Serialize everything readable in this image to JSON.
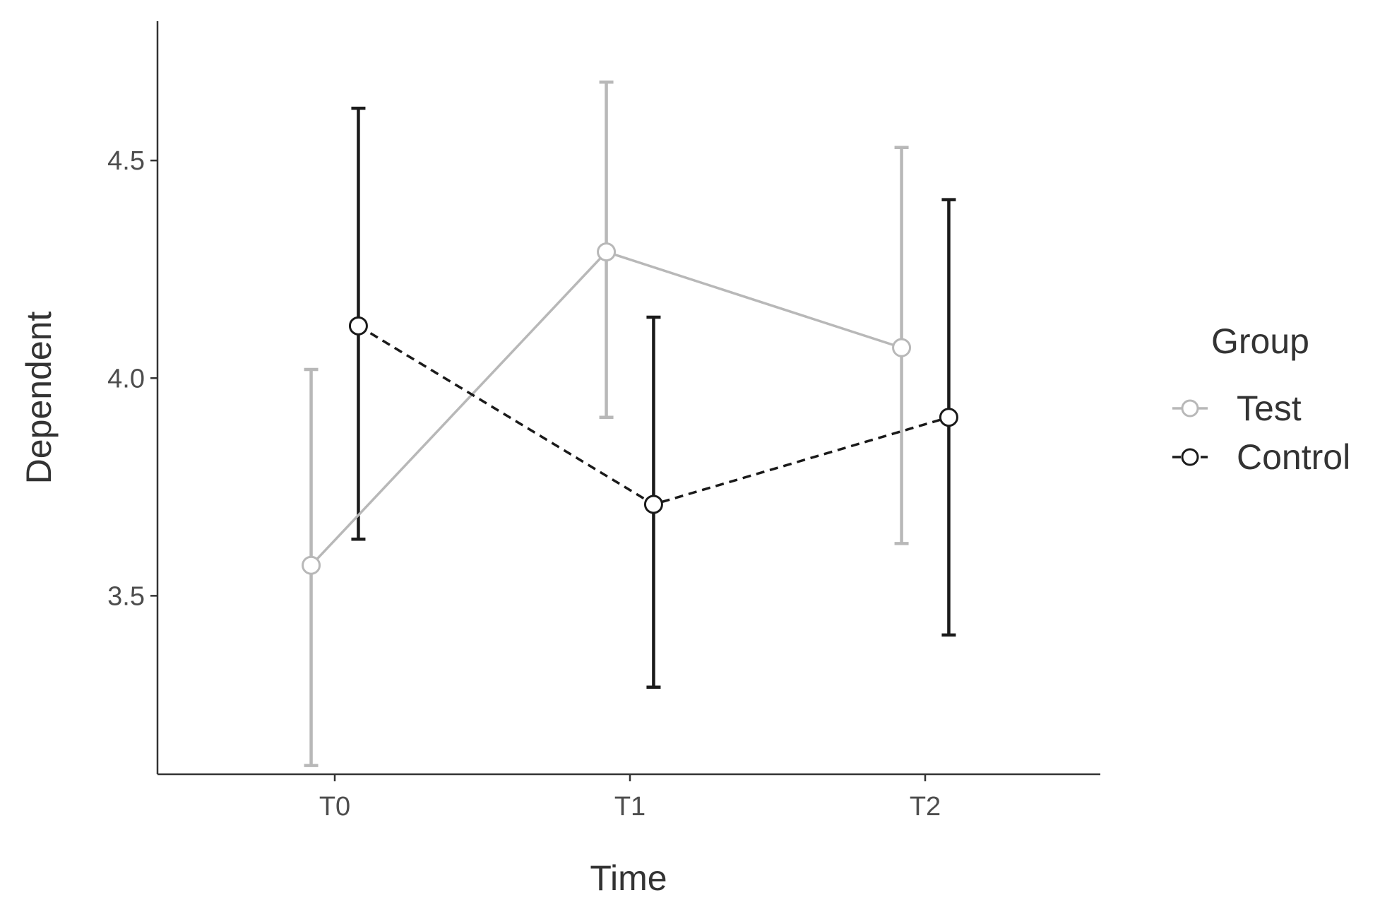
{
  "chart_data": {
    "type": "line",
    "title": "",
    "xlabel": "Time",
    "ylabel": "Dependent",
    "categories": [
      "T0",
      "T1",
      "T2"
    ],
    "y_ticks": [
      "3.5",
      "4.0",
      "4.5"
    ],
    "ylim": [
      3.09,
      4.82
    ],
    "grid": false,
    "legend": {
      "title": "Group",
      "placement": "right"
    },
    "series": [
      {
        "name": "Test",
        "values": [
          3.57,
          4.29,
          4.07
        ],
        "error_low": [
          3.11,
          3.91,
          3.62
        ],
        "error_high": [
          4.02,
          4.68,
          4.53
        ],
        "color": "#b8b8b8",
        "line_style": "solid",
        "dodge": -0.08
      },
      {
        "name": "Control",
        "values": [
          4.12,
          3.71,
          3.91
        ],
        "error_low": [
          3.63,
          3.29,
          3.41
        ],
        "error_high": [
          4.62,
          4.14,
          4.41
        ],
        "color": "#1a1a1a",
        "line_style": "dashed",
        "dodge": 0.08
      }
    ]
  }
}
